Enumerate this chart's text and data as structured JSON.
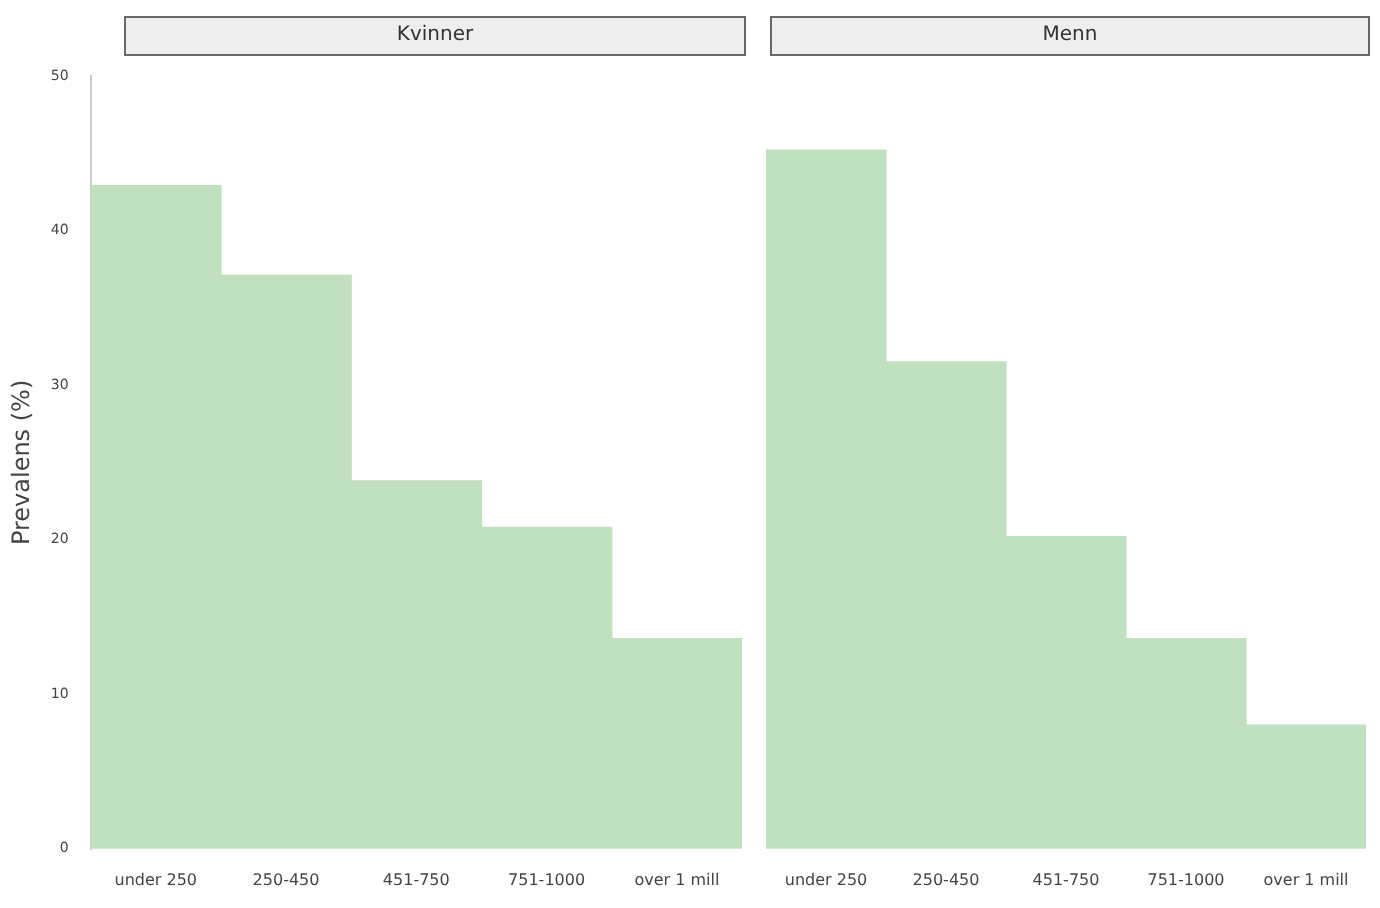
{
  "chart_data": [
    {
      "type": "bar",
      "title": "Kvinner",
      "ylabel": "Prevalens (%)",
      "categories": [
        "under 250",
        "250-450",
        "451-750",
        "751-1000",
        "over 1 mill"
      ],
      "values": [
        42.9,
        37.1,
        23.8,
        20.8,
        13.6
      ],
      "color": "#c0e0c0",
      "ylim": [
        0,
        50
      ],
      "yticks": [
        0,
        10,
        20,
        30,
        40,
        50
      ],
      "grid": false
    },
    {
      "type": "bar",
      "title": "Menn",
      "categories": [
        "under 250",
        "250-450",
        "451-750",
        "751-1000",
        "over 1 mill"
      ],
      "values": [
        45.2,
        31.5,
        20.2,
        13.6,
        8.0
      ],
      "color": "#c0e0c0",
      "ylim": [
        0,
        50
      ],
      "yticks": [
        0,
        10,
        20,
        30,
        40,
        50
      ],
      "grid": false,
      "tick_labels": "x"
    }
  ]
}
